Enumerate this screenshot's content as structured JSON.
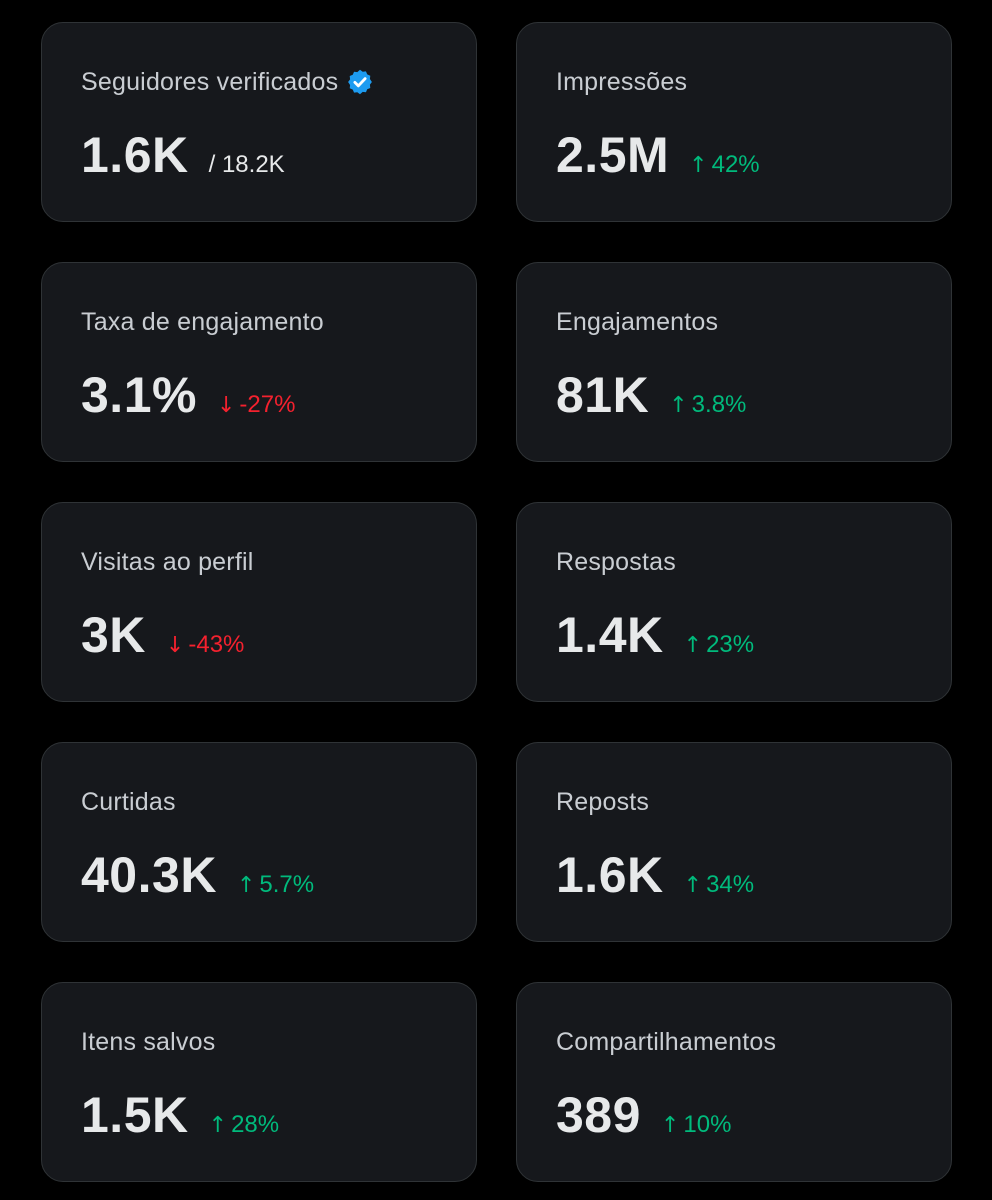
{
  "colors": {
    "background": "#000000",
    "card": "#16181c",
    "border": "#2f3336",
    "positive": "#00ba7c",
    "negative": "#f4212e",
    "verified_badge": "#1d9bf0"
  },
  "cards": [
    {
      "label": "Seguidores verificados",
      "value": "1.6K",
      "sub": "/ 18.2K",
      "icon": "verified-badge-icon"
    },
    {
      "label": "Impressões",
      "value": "2.5M",
      "delta": "42%",
      "direction": "up"
    },
    {
      "label": "Taxa de engajamento",
      "value": "3.1%",
      "delta": "-27%",
      "direction": "down"
    },
    {
      "label": "Engajamentos",
      "value": "81K",
      "delta": "3.8%",
      "direction": "up"
    },
    {
      "label": "Visitas ao perfil",
      "value": "3K",
      "delta": "-43%",
      "direction": "down"
    },
    {
      "label": "Respostas",
      "value": "1.4K",
      "delta": "23%",
      "direction": "up"
    },
    {
      "label": "Curtidas",
      "value": "40.3K",
      "delta": "5.7%",
      "direction": "up"
    },
    {
      "label": "Reposts",
      "value": "1.6K",
      "delta": "34%",
      "direction": "up"
    },
    {
      "label": "Itens salvos",
      "value": "1.5K",
      "delta": "28%",
      "direction": "up"
    },
    {
      "label": "Compartilhamentos",
      "value": "389",
      "delta": "10%",
      "direction": "up"
    }
  ]
}
